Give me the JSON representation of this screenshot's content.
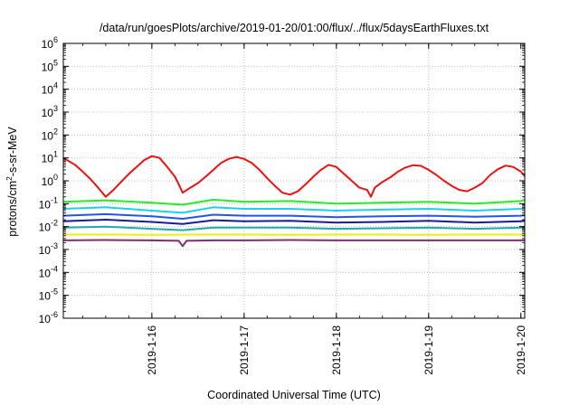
{
  "chart_data": {
    "type": "line",
    "title": "/data/run/goesPlots/archive/2019-01-20/01:00/flux/../flux/5daysEarthFluxes.txt",
    "xlabel": "Coordinated Universal Time (UTC)",
    "ylabel": "protons/cm²-s-sr-MeV",
    "ylabel_parts": {
      "base": "protons/cm",
      "sup": "2",
      "rest": "-s-sr-MeV"
    },
    "yscale": "log",
    "ylim": [
      1e-06,
      1000000.0
    ],
    "xlim": [
      "2019-01-15T00:58",
      "2019-01-20T01:00"
    ],
    "grid": true,
    "x_ticks": [
      "2019-1-16",
      "2019-1-17",
      "2019-1-18",
      "2019-1-19",
      "2019-1-20"
    ],
    "x_tick_dates": [
      "2019-01-16T00:00",
      "2019-01-17T00:00",
      "2019-01-18T00:00",
      "2019-01-19T00:00",
      "2019-01-20T00:00"
    ],
    "y_ticks": [
      {
        "base": "10",
        "exp": "6"
      },
      {
        "base": "10",
        "exp": "5"
      },
      {
        "base": "10",
        "exp": "4"
      },
      {
        "base": "10",
        "exp": "3"
      },
      {
        "base": "10",
        "exp": "2"
      },
      {
        "base": "10",
        "exp": "1"
      },
      {
        "base": "10",
        "exp": "0"
      },
      {
        "base": "10",
        "exp": "-1"
      },
      {
        "base": "10",
        "exp": "-2"
      },
      {
        "base": "10",
        "exp": "-3"
      },
      {
        "base": "10",
        "exp": "-4"
      },
      {
        "base": "10",
        "exp": "-5"
      },
      {
        "base": "10",
        "exp": "-6"
      }
    ],
    "y_tick_values": [
      1000000.0,
      100000.0,
      10000.0,
      1000.0,
      100.0,
      10.0,
      1,
      0.1,
      0.01,
      0.001,
      0.0001,
      1e-05,
      1e-06
    ],
    "series": [
      {
        "color": "#ee1111",
        "x": [
          "2019-01-15T01:00",
          "2019-01-15T04:00",
          "2019-01-15T06:00",
          "2019-01-15T08:00",
          "2019-01-15T10:00",
          "2019-01-15T12:00",
          "2019-01-15T14:00",
          "2019-01-15T16:00",
          "2019-01-15T18:00",
          "2019-01-15T20:00",
          "2019-01-15T22:00",
          "2019-01-16T00:00",
          "2019-01-16T02:00",
          "2019-01-16T04:00",
          "2019-01-16T06:00",
          "2019-01-16T07:00",
          "2019-01-16T08:00",
          "2019-01-16T10:00",
          "2019-01-16T12:00",
          "2019-01-16T14:00",
          "2019-01-16T16:00",
          "2019-01-16T18:00",
          "2019-01-16T20:00",
          "2019-01-16T22:00",
          "2019-01-17T00:00",
          "2019-01-17T02:00",
          "2019-01-17T04:00",
          "2019-01-17T06:00",
          "2019-01-17T08:00",
          "2019-01-17T10:00",
          "2019-01-17T12:00",
          "2019-01-17T14:00",
          "2019-01-17T16:00",
          "2019-01-17T18:00",
          "2019-01-17T20:00",
          "2019-01-17T22:00",
          "2019-01-18T00:00",
          "2019-01-18T02:00",
          "2019-01-18T04:00",
          "2019-01-18T06:00",
          "2019-01-18T08:00",
          "2019-01-18T09:00",
          "2019-01-18T10:00",
          "2019-01-18T12:00",
          "2019-01-18T14:00",
          "2019-01-18T16:00",
          "2019-01-18T18:00",
          "2019-01-18T20:00",
          "2019-01-18T22:00",
          "2019-01-19T00:00",
          "2019-01-19T02:00",
          "2019-01-19T04:00",
          "2019-01-19T06:00",
          "2019-01-19T08:00",
          "2019-01-19T10:00",
          "2019-01-19T12:00",
          "2019-01-19T14:00",
          "2019-01-19T16:00",
          "2019-01-19T18:00",
          "2019-01-19T20:00",
          "2019-01-19T22:00",
          "2019-01-20T00:00",
          "2019-01-20T01:00"
        ],
        "values": [
          10,
          5,
          2.5,
          1.2,
          0.5,
          0.2,
          0.4,
          0.9,
          2,
          4,
          8,
          12,
          10,
          4,
          1.5,
          0.7,
          0.3,
          0.5,
          0.8,
          1.5,
          3,
          6,
          9,
          11,
          9,
          6,
          3,
          1.3,
          0.6,
          0.3,
          0.25,
          0.35,
          0.7,
          1.5,
          3,
          5,
          4,
          2,
          1,
          0.5,
          0.4,
          0.2,
          0.5,
          0.9,
          1.4,
          2.5,
          3.8,
          4.8,
          4.5,
          3,
          1.8,
          1,
          0.6,
          0.4,
          0.35,
          0.5,
          0.8,
          1.8,
          3.2,
          4.6,
          4,
          2.5,
          1.6
        ]
      },
      {
        "color": "#22ee22",
        "x": [
          "2019-01-15T01:00",
          "2019-01-15T12:00",
          "2019-01-16T00:00",
          "2019-01-16T08:00",
          "2019-01-16T16:00",
          "2019-01-17T00:00",
          "2019-01-17T12:00",
          "2019-01-18T00:00",
          "2019-01-18T12:00",
          "2019-01-19T00:00",
          "2019-01-19T12:00",
          "2019-01-20T00:00",
          "2019-01-20T01:00"
        ],
        "values": [
          0.12,
          0.14,
          0.11,
          0.09,
          0.15,
          0.12,
          0.13,
          0.1,
          0.11,
          0.12,
          0.1,
          0.13,
          0.15
        ]
      },
      {
        "color": "#22ccee",
        "x": [
          "2019-01-15T01:00",
          "2019-01-15T12:00",
          "2019-01-16T00:00",
          "2019-01-16T08:00",
          "2019-01-16T16:00",
          "2019-01-17T00:00",
          "2019-01-17T12:00",
          "2019-01-18T00:00",
          "2019-01-18T12:00",
          "2019-01-19T00:00",
          "2019-01-19T12:00",
          "2019-01-20T00:00",
          "2019-01-20T01:00"
        ],
        "values": [
          0.06,
          0.07,
          0.05,
          0.04,
          0.07,
          0.06,
          0.06,
          0.05,
          0.055,
          0.06,
          0.05,
          0.06,
          0.065
        ]
      },
      {
        "color": "#2255ee",
        "x": [
          "2019-01-15T01:00",
          "2019-01-15T12:00",
          "2019-01-16T00:00",
          "2019-01-16T08:00",
          "2019-01-16T16:00",
          "2019-01-17T00:00",
          "2019-01-17T12:00",
          "2019-01-18T00:00",
          "2019-01-18T12:00",
          "2019-01-19T00:00",
          "2019-01-19T12:00",
          "2019-01-20T00:00",
          "2019-01-20T01:00"
        ],
        "values": [
          0.03,
          0.035,
          0.028,
          0.022,
          0.033,
          0.03,
          0.03,
          0.026,
          0.028,
          0.03,
          0.027,
          0.03,
          0.032
        ]
      },
      {
        "color": "#1a1aa0",
        "x": [
          "2019-01-15T01:00",
          "2019-01-15T12:00",
          "2019-01-16T00:00",
          "2019-01-16T08:00",
          "2019-01-16T16:00",
          "2019-01-17T00:00",
          "2019-01-17T12:00",
          "2019-01-18T00:00",
          "2019-01-18T12:00",
          "2019-01-19T00:00",
          "2019-01-19T12:00",
          "2019-01-20T00:00",
          "2019-01-20T01:00"
        ],
        "values": [
          0.017,
          0.02,
          0.016,
          0.013,
          0.019,
          0.017,
          0.018,
          0.015,
          0.016,
          0.018,
          0.015,
          0.017,
          0.018
        ]
      },
      {
        "color": "#22aaaa",
        "x": [
          "2019-01-15T01:00",
          "2019-01-15T12:00",
          "2019-01-16T00:00",
          "2019-01-16T08:00",
          "2019-01-16T16:00",
          "2019-01-17T00:00",
          "2019-01-17T12:00",
          "2019-01-18T00:00",
          "2019-01-18T12:00",
          "2019-01-19T00:00",
          "2019-01-19T12:00",
          "2019-01-20T00:00",
          "2019-01-20T01:00"
        ],
        "values": [
          0.009,
          0.01,
          0.008,
          0.007,
          0.009,
          0.009,
          0.009,
          0.008,
          0.0085,
          0.009,
          0.008,
          0.009,
          0.009
        ]
      },
      {
        "color": "#eeee11",
        "x": [
          "2019-01-15T01:00",
          "2019-01-15T12:00",
          "2019-01-16T00:00",
          "2019-01-16T12:00",
          "2019-01-17T00:00",
          "2019-01-17T12:00",
          "2019-01-18T00:00",
          "2019-01-18T12:00",
          "2019-01-19T00:00",
          "2019-01-19T12:00",
          "2019-01-20T00:00",
          "2019-01-20T01:00"
        ],
        "values": [
          0.0045,
          0.0045,
          0.0044,
          0.0045,
          0.0045,
          0.0044,
          0.0045,
          0.0045,
          0.0044,
          0.0045,
          0.0045,
          0.0045
        ]
      },
      {
        "color": "#8a2a6e",
        "x": [
          "2019-01-15T01:00",
          "2019-01-15T12:00",
          "2019-01-16T00:00",
          "2019-01-16T07:00",
          "2019-01-16T08:00",
          "2019-01-16T09:00",
          "2019-01-16T16:00",
          "2019-01-17T00:00",
          "2019-01-17T12:00",
          "2019-01-18T00:00",
          "2019-01-18T12:00",
          "2019-01-19T00:00",
          "2019-01-19T12:00",
          "2019-01-20T00:00",
          "2019-01-20T01:00"
        ],
        "values": [
          0.0025,
          0.0026,
          0.0025,
          0.0024,
          0.0014,
          0.0024,
          0.0025,
          0.0025,
          0.0026,
          0.0025,
          0.0025,
          0.0025,
          0.0025,
          0.0025,
          0.0025
        ]
      }
    ]
  }
}
